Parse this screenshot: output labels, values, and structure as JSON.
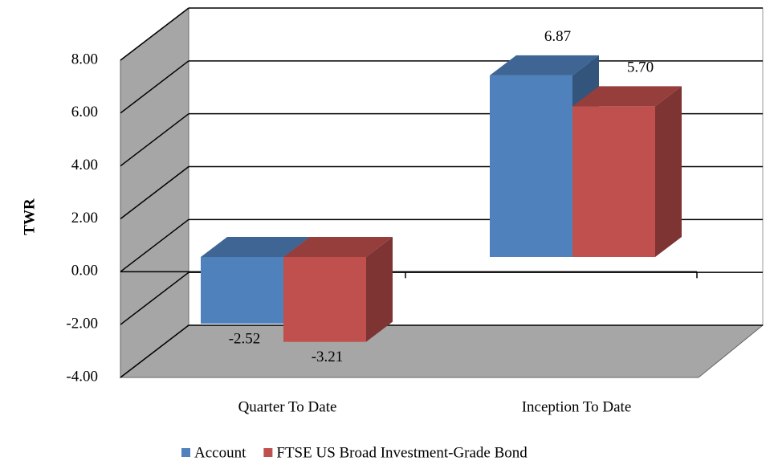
{
  "chart_data": {
    "type": "bar3d",
    "y_label": "TWR",
    "categories": [
      "Quarter To Date",
      "Inception To Date"
    ],
    "series": [
      {
        "name": "Account",
        "color": "#4f81bd",
        "values": [
          -2.52,
          6.87
        ],
        "value_labels": [
          "-2.52",
          "6.87"
        ]
      },
      {
        "name": "FTSE US Broad Investment-Grade Bond",
        "color": "#c0504d",
        "values": [
          -3.21,
          5.7
        ],
        "value_labels": [
          "-3.21",
          "5.70"
        ]
      }
    ],
    "ylim": [
      -4,
      8
    ],
    "yticks": [
      {
        "value": -4,
        "label": "-4.00"
      },
      {
        "value": -2,
        "label": "-2.00"
      },
      {
        "value": 0,
        "label": "0.00"
      },
      {
        "value": 2,
        "label": "2.00"
      },
      {
        "value": 4,
        "label": "4.00"
      },
      {
        "value": 6,
        "label": "6.00"
      },
      {
        "value": 8,
        "label": "8.00"
      }
    ],
    "grid": true,
    "legend": "bottom"
  }
}
